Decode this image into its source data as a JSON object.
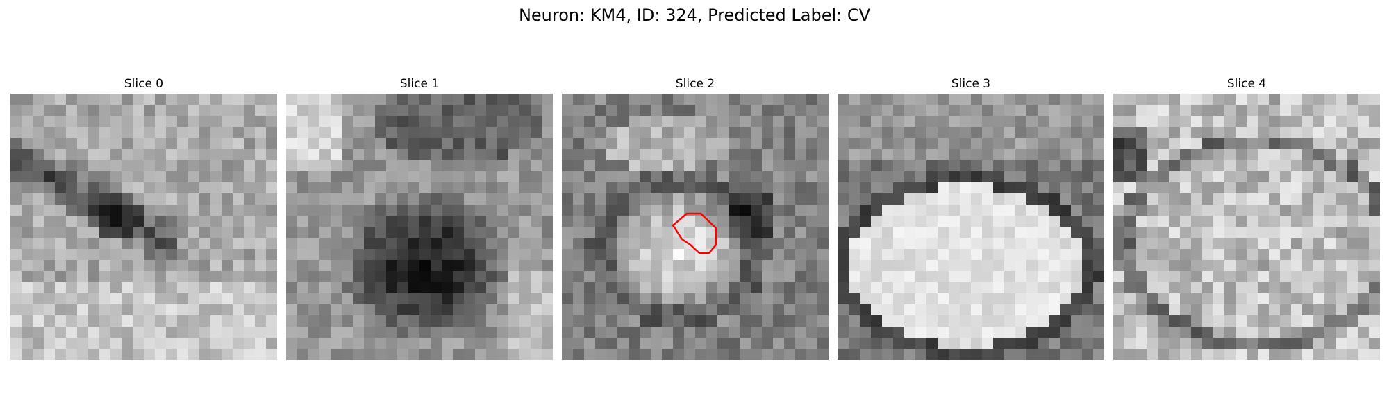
{
  "figure": {
    "title": "Neuron: KM4, ID: 324, Predicted Label: CV"
  },
  "panels": [
    {
      "title": "Slice 0"
    },
    {
      "title": "Slice 1"
    },
    {
      "title": "Slice 2"
    },
    {
      "title": "Slice 3"
    },
    {
      "title": "Slice 4"
    }
  ],
  "colors": {
    "contour": "#ff0000",
    "colormap": "gray"
  }
}
